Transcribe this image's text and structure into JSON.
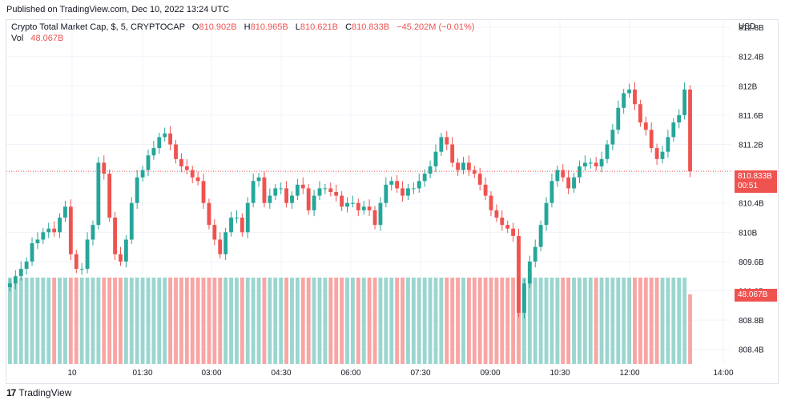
{
  "header": {
    "published": "Published on TradingView.com, Dec 10, 2022 13:24 UTC"
  },
  "legend": {
    "title": "Crypto Total Market Cap, $, 5, CRYPTOCAP",
    "o_key": "O",
    "o_val": "810.902B",
    "h_key": "H",
    "h_val": "810.965B",
    "l_key": "L",
    "l_val": "810.621B",
    "c_key": "C",
    "c_val": "810.833B",
    "change": "−45.202M (−0.01%)",
    "vol_label": "Vol",
    "vol_val": "48.067B"
  },
  "axis": {
    "currency": "USD"
  },
  "price_tag": {
    "value": "810.833B",
    "countdown": "00:51"
  },
  "volume_tag": {
    "value": "48.067B"
  },
  "footer": {
    "brand": "TradingView",
    "logo_mark": "17"
  },
  "colors": {
    "up": "#26a69a",
    "down": "#ef5350",
    "up_vol": "#9ad6cf",
    "down_vol": "#f8a5a3",
    "grid": "#f0f3fa"
  },
  "chart_data": {
    "type": "candlestick",
    "title": "Crypto Total Market Cap, $, 5, CRYPTOCAP",
    "ylabel": "USD",
    "ylim": [
      808.2,
      812.9
    ],
    "y_ticks": [
      "812.8B",
      "812.4B",
      "812B",
      "811.6B",
      "811.2B",
      "810.8B",
      "810.4B",
      "810B",
      "809.6B",
      "809.2B",
      "808.8B",
      "808.4B"
    ],
    "y_tick_values": [
      812.8,
      812.4,
      812.0,
      811.6,
      811.2,
      810.8,
      810.4,
      810.0,
      809.6,
      809.2,
      808.8,
      808.4
    ],
    "x_ticks": [
      "10",
      "01:30",
      "03:00",
      "04:30",
      "06:00",
      "07:30",
      "09:00",
      "10:30",
      "12:00",
      "14:00"
    ],
    "last_price": 810.833,
    "candles_close": [
      809.3,
      809.4,
      809.5,
      809.6,
      809.85,
      809.9,
      810.0,
      810.05,
      810.0,
      810.2,
      810.35,
      809.7,
      809.5,
      809.5,
      809.9,
      810.1,
      810.95,
      810.8,
      810.2,
      809.7,
      809.6,
      809.9,
      810.4,
      810.75,
      810.85,
      811.05,
      811.15,
      811.3,
      811.35,
      811.2,
      811.0,
      810.9,
      810.85,
      810.75,
      810.7,
      810.4,
      810.1,
      809.9,
      809.7,
      810.0,
      810.2,
      810.2,
      810.0,
      810.4,
      810.7,
      810.75,
      810.4,
      810.5,
      810.6,
      810.6,
      810.4,
      810.5,
      810.65,
      810.6,
      810.3,
      810.5,
      810.6,
      810.6,
      810.55,
      810.5,
      810.35,
      810.4,
      810.4,
      810.3,
      810.35,
      810.3,
      810.1,
      810.4,
      810.65,
      810.7,
      810.6,
      810.5,
      810.6,
      810.6,
      810.7,
      810.8,
      810.9,
      811.1,
      811.3,
      811.2,
      810.95,
      810.85,
      810.95,
      810.85,
      810.8,
      810.65,
      810.5,
      810.3,
      810.2,
      810.1,
      810.05,
      809.95,
      808.9,
      809.3,
      809.6,
      809.8,
      810.1,
      810.4,
      810.7,
      810.85,
      810.75,
      810.6,
      810.75,
      810.9,
      810.95,
      810.95,
      810.9,
      811.0,
      811.2,
      811.4,
      811.7,
      811.9,
      811.95,
      811.75,
      811.5,
      811.4,
      811.15,
      811.0,
      811.1,
      811.3,
      811.5,
      811.6,
      811.95,
      810.833
    ]
  }
}
